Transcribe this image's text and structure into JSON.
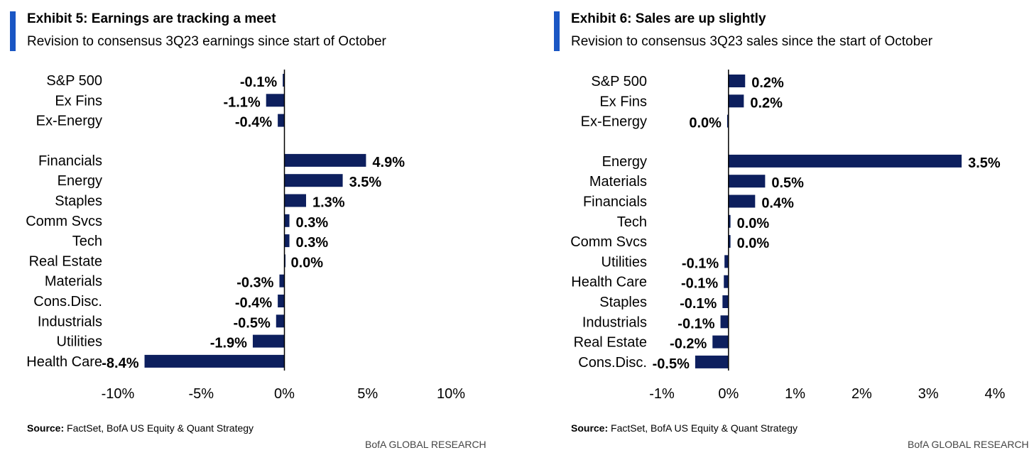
{
  "colors": {
    "accent": "#1a56c4",
    "bar": "#0d1f5e",
    "axis": "#000000"
  },
  "exhibit5": {
    "title": "Exhibit 5: Earnings are tracking a meet",
    "subtitle": "Revision to consensus 3Q23 earnings since start of October",
    "source_label": "Source:",
    "source_text": "FactSet, BofA US Equity & Quant Strategy",
    "brand": "BofA GLOBAL RESEARCH"
  },
  "exhibit6": {
    "title": "Exhibit 6: Sales are up slightly",
    "subtitle": "Revision to consensus 3Q23 sales since the start of October",
    "source_label": "Source:",
    "source_text": "FactSet, BofA US Equity & Quant Strategy",
    "brand": "BofA GLOBAL RESEARCH"
  },
  "chart_data": [
    {
      "type": "bar",
      "orientation": "horizontal",
      "categories": [
        "S&P 500",
        "Ex Fins",
        "Ex-Energy",
        "Financials",
        "Energy",
        "Staples",
        "Comm Svcs",
        "Tech",
        "Real Estate",
        "Materials",
        "Cons.Disc.",
        "Industrials",
        "Utilities",
        "Health Care"
      ],
      "values": [
        -0.1,
        -1.1,
        -0.4,
        4.9,
        3.5,
        1.3,
        0.3,
        0.3,
        0.0,
        -0.3,
        -0.4,
        -0.5,
        -1.9,
        -8.4
      ],
      "value_labels": [
        "-0.1%",
        "-1.1%",
        "-0.4%",
        "4.9%",
        "3.5%",
        "1.3%",
        "0.3%",
        "0.3%",
        "0.0%",
        "-0.3%",
        "-0.4%",
        "-0.5%",
        "-1.9%",
        "-8.4%"
      ],
      "xlim": [
        -10,
        10
      ],
      "xticks": [
        -10,
        -5,
        0,
        5,
        10
      ],
      "xtick_labels": [
        "-10%",
        "-5%",
        "0%",
        "5%",
        "10%"
      ],
      "grid": false,
      "legend": false
    },
    {
      "type": "bar",
      "orientation": "horizontal",
      "categories": [
        "S&P 500",
        "Ex Fins",
        "Ex-Energy",
        "Energy",
        "Materials",
        "Financials",
        "Tech",
        "Comm Svcs",
        "Utilities",
        "Health Care",
        "Staples",
        "Industrials",
        "Real Estate",
        "Cons.Disc."
      ],
      "values": [
        0.25,
        0.23,
        -0.02,
        3.5,
        0.55,
        0.4,
        0.03,
        0.03,
        -0.06,
        -0.07,
        -0.09,
        -0.12,
        -0.24,
        -0.5
      ],
      "value_labels": [
        "0.2%",
        "0.2%",
        "0.0%",
        "3.5%",
        "0.5%",
        "0.4%",
        "0.0%",
        "0.0%",
        "-0.1%",
        "-0.1%",
        "-0.1%",
        "-0.1%",
        "-0.2%",
        "-0.5%"
      ],
      "xlim": [
        -1,
        4
      ],
      "xticks": [
        -1,
        0,
        1,
        2,
        3,
        4
      ],
      "xtick_labels": [
        "-1%",
        "0%",
        "1%",
        "2%",
        "3%",
        "4%"
      ],
      "grid": false,
      "legend": false
    }
  ]
}
